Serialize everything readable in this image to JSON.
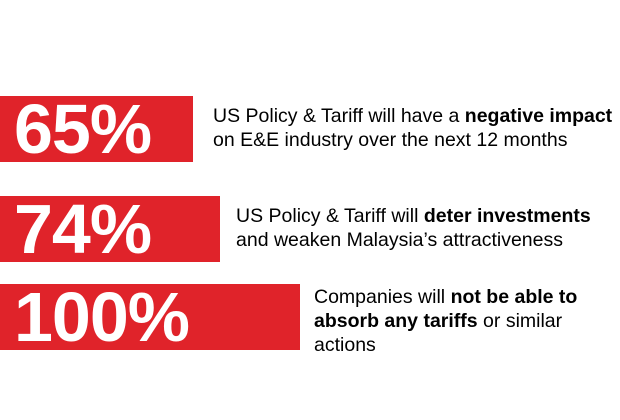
{
  "stats": [
    {
      "value": "65%",
      "text_before": "US Policy & Tariff will have a ",
      "text_bold": "negative impact",
      "text_after": " on E&E industry over the next 12 months"
    },
    {
      "value": "74%",
      "text_before": "US Policy & Tariff will ",
      "text_bold": "deter investments",
      "text_after": " and weaken Malaysia’s attractiveness"
    },
    {
      "value": "100%",
      "text_before": "Companies will ",
      "text_bold": "not be able to absorb any tariffs",
      "text_after": " or similar actions"
    }
  ],
  "colors": {
    "accent": "#e0232a",
    "text": "#000000",
    "background": "#ffffff"
  }
}
